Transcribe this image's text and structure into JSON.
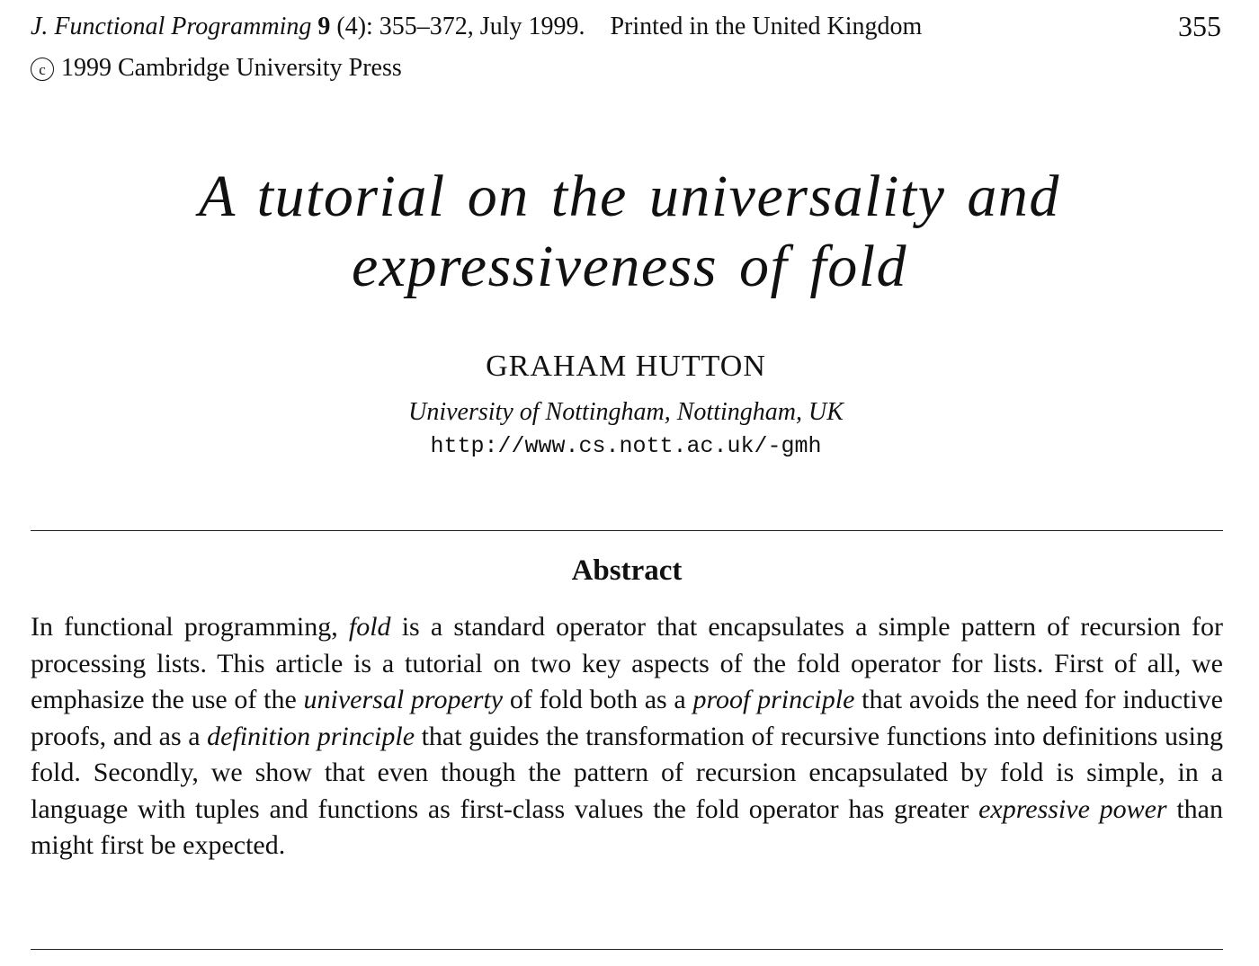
{
  "header": {
    "journal_name": "J. Functional Programming",
    "volume": "9",
    "issue_pages_date": "(4): 355–372, July 1999.",
    "printed": "Printed in the United Kingdom",
    "copyright_symbol": "c",
    "copyright": "1999 Cambridge University Press",
    "page_number": "355"
  },
  "title": {
    "line1": "A tutorial on the universality and",
    "line2": "expressiveness of fold"
  },
  "author": {
    "name": "GRAHAM HUTTON",
    "affiliation": "University of Nottingham, Nottingham, UK",
    "url": "http://www.cs.nott.ac.uk/-gmh"
  },
  "abstract": {
    "heading": "Abstract",
    "segments": [
      {
        "text": "In functional programming, ",
        "italic": false
      },
      {
        "text": "fold",
        "italic": true
      },
      {
        "text": " is a standard operator that encapsulates a simple pattern of recursion for processing lists. This article is a tutorial on two key aspects of the fold operator for lists. First of all, we emphasize the use of the ",
        "italic": false
      },
      {
        "text": "universal property",
        "italic": true
      },
      {
        "text": " of fold both as a ",
        "italic": false
      },
      {
        "text": "proof principle",
        "italic": true
      },
      {
        "text": " that avoids the need for inductive proofs, and as a ",
        "italic": false
      },
      {
        "text": "definition principle",
        "italic": true
      },
      {
        "text": " that guides the transformation of recursive functions into definitions using fold. Secondly, we show that even though the pattern of recursion encapsulated by fold is simple, in a language with tuples and functions as first-class values the fold operator has greater ",
        "italic": false
      },
      {
        "text": "expressive power",
        "italic": true
      },
      {
        "text": " than might first be expected.",
        "italic": false
      }
    ]
  }
}
